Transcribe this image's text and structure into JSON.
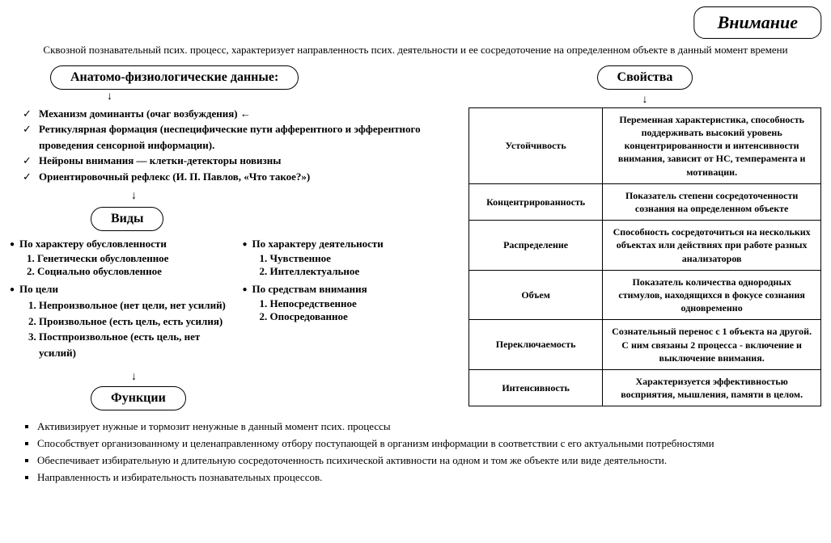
{
  "title": "Внимание",
  "subtitle": "Сквозной познавательный псих. процесс, характеризует направленность псих. деятельности и ее сосредоточение на определенном объекте в данный момент времени",
  "anatHeader": "Анатомо-физиологические данные:",
  "anatItems": [
    "Механизм доминанты (очаг возбуждения) ←",
    "Ретикулярная формация (неспецифические пути афферентного и эфферентного проведения сенсорной информации).",
    "Нейроны внимания — клетки-детекторы новизны",
    "Ориентировочный рефлекс (И. П. Павлов, «Что такое?»)"
  ],
  "vidyHeader": "Виды",
  "vidyLeft": {
    "h1": "По характеру обусловленности",
    "l1": [
      "Генетически обусловленное",
      "Социально обусловленное"
    ],
    "h2": "По цели",
    "l2": [
      "Непроизвольное (нет цели, нет усилий)",
      "Произвольное  (есть цель, есть усилия)",
      "Постпроизвольное (есть цель, нет усилий)"
    ]
  },
  "vidyRight": {
    "h1": "По характеру деятельности",
    "l1": [
      "Чувственное",
      "Интеллектуальное"
    ],
    "h2": "По средствам внимания",
    "l2": [
      "Непосредственное",
      "Опосредованное"
    ]
  },
  "funcHeader": "Функции",
  "funcItems": [
    "Активизирует нужные и тормозит ненужные в данный момент псих. процессы",
    "Способствует организованному и целенаправленному отбору поступающей в организм информации в соответствии с его актуальными потребностями",
    "Обеспечивает избирательную и длительную сосредоточенность психической активности на одном и том же объекте или виде деятельности.",
    "Направленность и избирательность познавательных процессов."
  ],
  "propHeader": "Свойства",
  "props": [
    {
      "name": "Устойчивость",
      "desc": "Переменная характеристика, способность поддерживать высокий уровень концентрированности и интенсивности внимания, зависит от НС, темперамента и мотивации."
    },
    {
      "name": "Концентрированность",
      "desc": "Показатель степени сосредоточенности сознания на определенном объекте"
    },
    {
      "name": "Распределение",
      "desc": "Способность сосредоточиться на нескольких объектах или действиях при работе разных анализаторов"
    },
    {
      "name": "Объем",
      "desc": "Показатель количества однородных стимулов, находящихся в фокусе сознания одновременно"
    },
    {
      "name": "Переключаемость",
      "desc": "Сознательный перенос с 1 объекта на другой. С ним связаны 2 процесса - включение и выключение внимания."
    },
    {
      "name": "Интенсивность",
      "desc": "Характеризуется эффективностью восприятия, мышления, памяти в целом."
    }
  ]
}
